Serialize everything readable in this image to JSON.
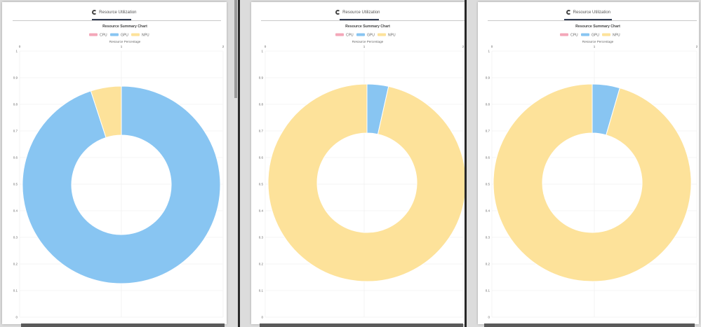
{
  "panels": [
    {
      "tab_label": "Resource Utilization",
      "chart_data": {
        "type": "doughnut",
        "title": "Resource Summary Chart",
        "xlabel": "Resource Percentage",
        "x_ticks": [
          "0",
          "1",
          "2"
        ],
        "y_ticks": [
          "0",
          "0.1",
          "0.2",
          "0.3",
          "0.4",
          "0.5",
          "0.6",
          "0.7",
          "0.8",
          "0.9",
          "1"
        ],
        "grid": true,
        "legend_position": "top",
        "categories": [
          "CPU",
          "GPU",
          "NPU"
        ],
        "colors": [
          "#f4a7b9",
          "#88c5f2",
          "#fde29a"
        ],
        "values": [
          0,
          0.95,
          0.05
        ]
      }
    },
    {
      "tab_label": "Resource Utilization",
      "chart_data": {
        "type": "doughnut",
        "title": "Resource Summary Chart",
        "xlabel": "Resource Percentage",
        "x_ticks": [
          "0",
          "1",
          "2"
        ],
        "y_ticks": [
          "0",
          "0.1",
          "0.2",
          "0.3",
          "0.4",
          "0.5",
          "0.6",
          "0.7",
          "0.8",
          "0.9",
          "1"
        ],
        "grid": true,
        "legend_position": "top",
        "categories": [
          "CPU",
          "GPU",
          "NPU"
        ],
        "colors": [
          "#f4a7b9",
          "#88c5f2",
          "#fde29a"
        ],
        "values": [
          0,
          0.035,
          0.965
        ]
      }
    },
    {
      "tab_label": "Resource Utilization",
      "chart_data": {
        "type": "doughnut",
        "title": "Resource Summary Chart",
        "xlabel": "Resource Percentage",
        "x_ticks": [
          "0",
          "1",
          "2"
        ],
        "y_ticks": [
          "0",
          "0.1",
          "0.2",
          "0.3",
          "0.4",
          "0.5",
          "0.6",
          "0.7",
          "0.8",
          "0.9",
          "1"
        ],
        "grid": true,
        "legend_position": "top",
        "categories": [
          "CPU",
          "GPU",
          "NPU"
        ],
        "colors": [
          "#f4a7b9",
          "#88c5f2",
          "#fde29a"
        ],
        "values": [
          0,
          0.045,
          0.955
        ]
      }
    }
  ]
}
